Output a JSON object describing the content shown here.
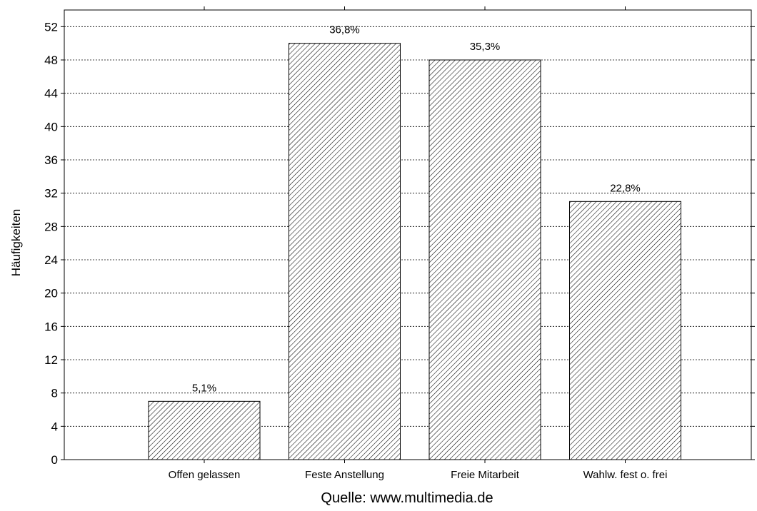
{
  "chart_data": {
    "type": "bar",
    "categories": [
      "Offen gelassen",
      "Feste Anstellung",
      "Freie Mitarbeit",
      "Wahlw. fest o. frei"
    ],
    "values": [
      7,
      50,
      48,
      31
    ],
    "data_labels": [
      "5,1%",
      "36,8%",
      "35,3%",
      "22,8%"
    ],
    "ylabel": "Häufigkeiten",
    "xlabel": "Quelle: www.multimedia.de",
    "ylim": [
      0,
      54
    ],
    "yticks": [
      0,
      4,
      8,
      12,
      16,
      20,
      24,
      28,
      32,
      36,
      40,
      44,
      48,
      52
    ],
    "grid": true,
    "bar_fill": "hatched",
    "colors": {
      "bar_stroke": "#000000",
      "hatch": "#000000",
      "grid": "#000000"
    }
  }
}
